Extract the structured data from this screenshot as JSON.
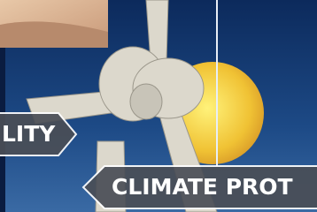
{
  "banners": [
    {
      "text": "LITY"
    },
    {
      "text": "CLIMATE PROT"
    }
  ]
}
